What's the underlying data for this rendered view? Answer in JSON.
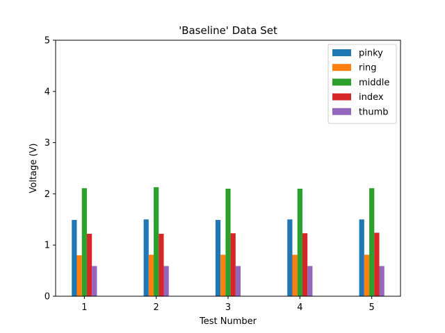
{
  "chart_data": {
    "type": "bar",
    "title": "'Baseline' Data Set",
    "xlabel": "Test Number",
    "ylabel": "Voltage (V)",
    "categories": [
      "1",
      "2",
      "3",
      "4",
      "5"
    ],
    "ylim": [
      0,
      5
    ],
    "yticks": [
      "0",
      "1",
      "2",
      "3",
      "4",
      "5"
    ],
    "grid": false,
    "legend_position": "top-right",
    "series": [
      {
        "name": "pinky",
        "color": "#1f77b4",
        "values": [
          1.49,
          1.5,
          1.49,
          1.5,
          1.5
        ]
      },
      {
        "name": "ring",
        "color": "#ff7f0e",
        "values": [
          0.8,
          0.81,
          0.81,
          0.81,
          0.81
        ]
      },
      {
        "name": "middle",
        "color": "#2ca02c",
        "values": [
          2.11,
          2.13,
          2.1,
          2.1,
          2.11
        ]
      },
      {
        "name": "index",
        "color": "#d62728",
        "values": [
          1.22,
          1.22,
          1.23,
          1.23,
          1.24
        ]
      },
      {
        "name": "thumb",
        "color": "#9467bd",
        "values": [
          0.59,
          0.59,
          0.59,
          0.59,
          0.59
        ]
      }
    ]
  }
}
